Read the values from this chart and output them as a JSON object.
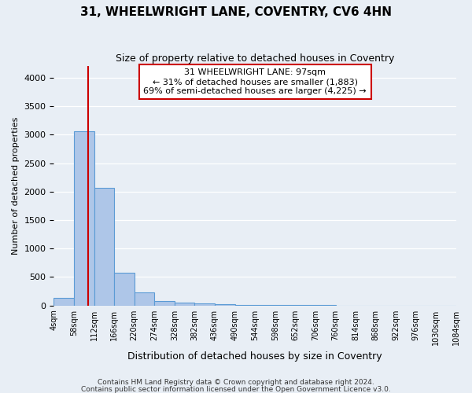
{
  "title": "31, WHEELWRIGHT LANE, COVENTRY, CV6 4HN",
  "subtitle": "Size of property relative to detached houses in Coventry",
  "xlabel": "Distribution of detached houses by size in Coventry",
  "ylabel": "Number of detached properties",
  "footer1": "Contains HM Land Registry data © Crown copyright and database right 2024.",
  "footer2": "Contains public sector information licensed under the Open Government Licence v3.0.",
  "bin_labels": [
    "4sqm",
    "58sqm",
    "112sqm",
    "166sqm",
    "220sqm",
    "274sqm",
    "328sqm",
    "382sqm",
    "436sqm",
    "490sqm",
    "544sqm",
    "598sqm",
    "652sqm",
    "706sqm",
    "760sqm",
    "814sqm",
    "868sqm",
    "922sqm",
    "976sqm",
    "1030sqm",
    "1084sqm"
  ],
  "bar_values": [
    130,
    3060,
    2060,
    570,
    230,
    80,
    50,
    30,
    15,
    5,
    3,
    2,
    1,
    1,
    0,
    0,
    0,
    0,
    0,
    0
  ],
  "bar_color": "#aec6e8",
  "bar_edge_color": "#5b9bd5",
  "ylim": [
    0,
    4200
  ],
  "yticks": [
    0,
    500,
    1000,
    1500,
    2000,
    2500,
    3000,
    3500,
    4000
  ],
  "property_sqm": 97,
  "annotation_line1": "31 WHEELWRIGHT LANE: 97sqm",
  "annotation_line2": "← 31% of detached houses are smaller (1,883)",
  "annotation_line3": "69% of semi-detached houses are larger (4,225) →",
  "annotation_box_color": "#ffffff",
  "annotation_box_edge": "#cc0000",
  "vline_color": "#cc0000",
  "bg_color": "#e8eef5",
  "grid_color": "#ffffff",
  "annotation_fontsize": 8.0,
  "title_fontsize": 11,
  "subtitle_fontsize": 9
}
